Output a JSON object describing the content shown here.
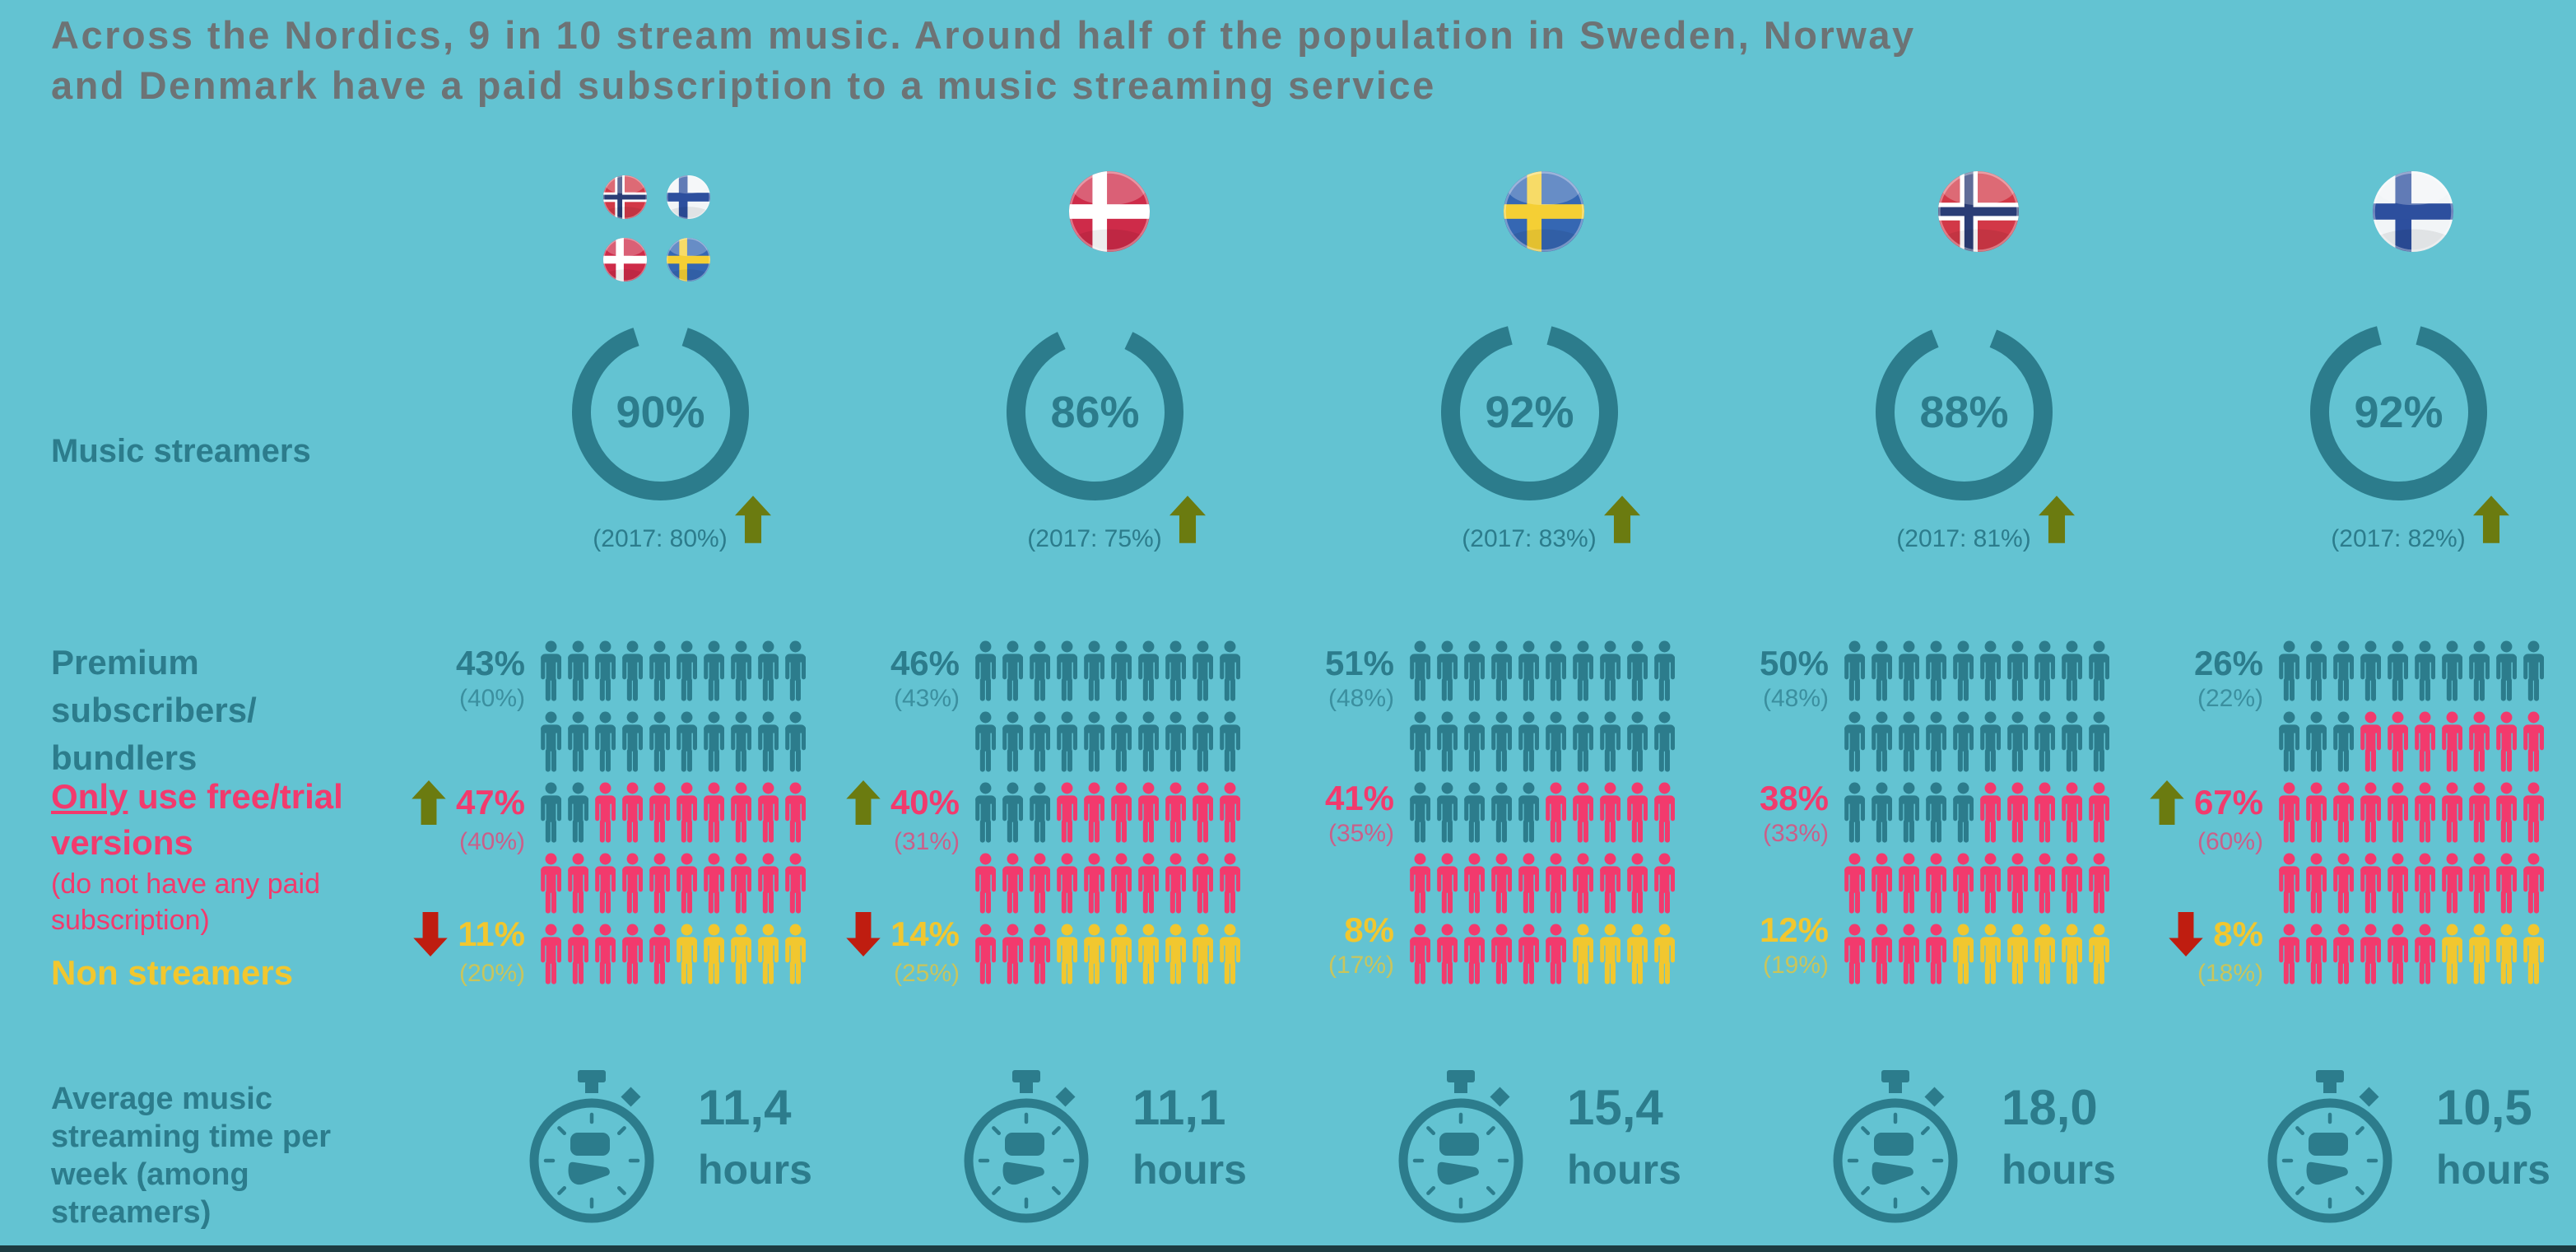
{
  "title": {
    "line1": "Across the Nordics, 9 in 10 stream music. Around half of the population in Sweden, Norway",
    "line2": "and Denmark have a paid subscription to a music streaming service"
  },
  "row_labels": {
    "streamers": "Music streamers",
    "premium_lines": [
      "Premium",
      "subscribers/",
      "bundlers"
    ],
    "free_underlined": "Only",
    "free_line1_rest": " use free/trial",
    "free_line2": "versions",
    "free_note_lines": [
      "(do not have any paid",
      "subscription)"
    ],
    "non": "Non streamers",
    "avg_lines": [
      "Average music",
      "streaming time per",
      "week (among",
      "streamers)"
    ],
    "hours_word": "hours"
  },
  "colors": {
    "background": "#63c3d2",
    "teal": "#2c7c8c",
    "gray": "#6d7375",
    "pink": "#f23a6d",
    "yellow": "#f1c72f",
    "olive": "#6b7b10",
    "red": "#bf1d10",
    "footer": "#1c3b41"
  },
  "chart_data": {
    "type": "table",
    "title": "Music streaming in the Nordics 2018 vs 2017",
    "categories": [
      "Nordics",
      "Denmark",
      "Sweden",
      "Norway",
      "Finland"
    ],
    "series": [
      {
        "name": "Music streamers",
        "values": [
          90,
          86,
          92,
          88,
          92
        ]
      },
      {
        "name": "Music streamers 2017",
        "values": [
          80,
          75,
          83,
          81,
          82
        ]
      },
      {
        "name": "Premium subscribers/bundlers",
        "values": [
          43,
          46,
          51,
          50,
          26
        ]
      },
      {
        "name": "Premium subscribers/bundlers 2017",
        "values": [
          40,
          43,
          48,
          48,
          22
        ]
      },
      {
        "name": "Only use free/trial versions",
        "values": [
          47,
          40,
          41,
          38,
          67
        ]
      },
      {
        "name": "Only use free/trial versions 2017",
        "values": [
          40,
          31,
          35,
          33,
          60
        ]
      },
      {
        "name": "Non streamers",
        "values": [
          11,
          14,
          8,
          12,
          8
        ]
      },
      {
        "name": "Non streamers 2017",
        "values": [
          20,
          25,
          17,
          19,
          18
        ]
      },
      {
        "name": "Average music streaming hours per week",
        "values": [
          11.4,
          11.1,
          15.4,
          18.0,
          10.5
        ]
      }
    ]
  },
  "countries": [
    {
      "id": "nordics",
      "flags": [
        "norway",
        "finland",
        "denmark",
        "sweden"
      ],
      "streamers": {
        "value": "90%",
        "prev": "(2017: 80%)",
        "arrow": "up"
      },
      "premium": {
        "value": "43%",
        "prev": "(40%)"
      },
      "free": {
        "value": "47%",
        "prev": "(40%)",
        "arrow": "up"
      },
      "non": {
        "value": "11%",
        "prev": "(20%)",
        "arrow": "down"
      },
      "icon_counts": {
        "teal": 22,
        "pink": 23,
        "yellow": 5
      },
      "hours": "11,4"
    },
    {
      "id": "denmark",
      "flags": [
        "denmark"
      ],
      "streamers": {
        "value": "86%",
        "prev": "(2017: 75%)",
        "arrow": "up"
      },
      "premium": {
        "value": "46%",
        "prev": "(43%)"
      },
      "free": {
        "value": "40%",
        "prev": "(31%)",
        "arrow": "up"
      },
      "non": {
        "value": "14%",
        "prev": "(25%)",
        "arrow": "down"
      },
      "icon_counts": {
        "teal": 23,
        "pink": 20,
        "yellow": 7
      },
      "hours": "11,1"
    },
    {
      "id": "sweden",
      "flags": [
        "sweden"
      ],
      "streamers": {
        "value": "92%",
        "prev": "(2017: 83%)",
        "arrow": "up"
      },
      "premium": {
        "value": "51%",
        "prev": "(48%)"
      },
      "free": {
        "value": "41%",
        "prev": "(35%)"
      },
      "non": {
        "value": "8%",
        "prev": "(17%)"
      },
      "icon_counts": {
        "teal": 25,
        "pink": 21,
        "yellow": 4
      },
      "hours": "15,4"
    },
    {
      "id": "norway",
      "flags": [
        "norway"
      ],
      "streamers": {
        "value": "88%",
        "prev": "(2017: 81%)",
        "arrow": "up"
      },
      "premium": {
        "value": "50%",
        "prev": "(48%)"
      },
      "free": {
        "value": "38%",
        "prev": "(33%)"
      },
      "non": {
        "value": "12%",
        "prev": "(19%)"
      },
      "icon_counts": {
        "teal": 25,
        "pink": 19,
        "yellow": 6
      },
      "hours": "18,0"
    },
    {
      "id": "finland",
      "flags": [
        "finland"
      ],
      "streamers": {
        "value": "92%",
        "prev": "(2017: 82%)",
        "arrow": "up"
      },
      "premium": {
        "value": "26%",
        "prev": "(22%)"
      },
      "free": {
        "value": "67%",
        "prev": "(60%)",
        "arrow": "up"
      },
      "non": {
        "value": "8%",
        "prev": "(18%)",
        "arrow": "down"
      },
      "icon_counts": {
        "teal": 13,
        "pink": 33,
        "yellow": 4
      },
      "hours": "10,5"
    }
  ]
}
